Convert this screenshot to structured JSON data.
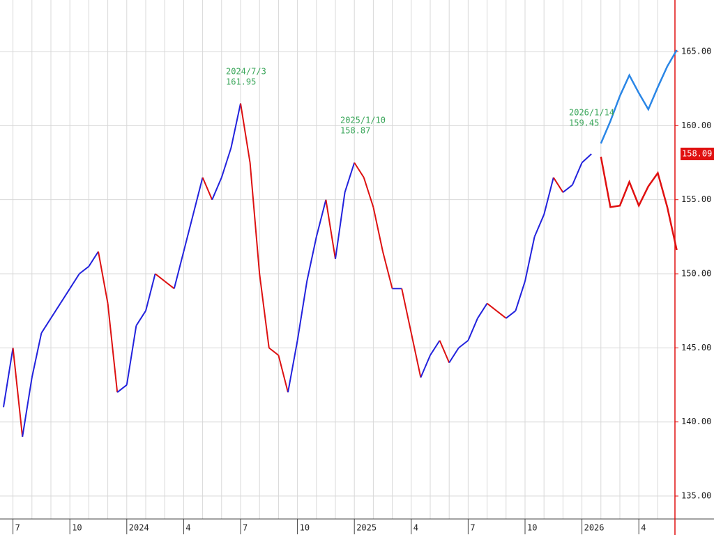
{
  "chart_data": {
    "type": "line",
    "categories": [
      null,
      "7",
      null,
      null,
      null,
      null,
      null,
      "10",
      null,
      null,
      null,
      null,
      null,
      "2024",
      null,
      null,
      null,
      null,
      null,
      "4",
      null,
      null,
      null,
      null,
      null,
      "7",
      null,
      null,
      null,
      null,
      null,
      "10",
      null,
      null,
      null,
      null,
      null,
      "2025",
      null,
      null,
      null,
      null,
      null,
      "4",
      null,
      null,
      null,
      null,
      null,
      "7",
      null,
      null,
      null,
      null,
      null,
      "10",
      null,
      null,
      null,
      null,
      null,
      "2026",
      null,
      null,
      null,
      null,
      null,
      "4",
      null,
      null,
      null,
      null
    ],
    "series": [
      {
        "color": "#2222dd",
        "down_color": "#dd1111",
        "values": [
          141,
          145,
          139,
          143,
          146,
          147,
          148,
          149,
          150,
          150.5,
          151.5,
          148,
          142,
          142.5,
          146.5,
          147.5,
          150,
          149.5,
          149,
          151.5,
          154,
          156.5,
          155,
          156.5,
          158.5,
          161.5,
          157.5,
          150,
          145,
          144.5,
          142,
          145.5,
          149.5,
          152.5,
          155,
          151,
          155.5,
          157.5,
          156.5,
          154.5,
          151.5,
          149,
          149,
          146,
          143,
          144.5,
          145.5,
          144,
          145,
          145.5,
          147,
          148,
          147.5,
          147,
          147.5,
          149.5,
          152.5,
          154,
          156.5,
          155.5,
          156,
          157.5,
          158.09,
          null,
          null,
          null,
          null,
          null,
          null,
          null,
          null,
          null
        ]
      },
      {
        "color": "#2a86e6",
        "values": [
          null,
          null,
          null,
          null,
          null,
          null,
          null,
          null,
          null,
          null,
          null,
          null,
          null,
          null,
          null,
          null,
          null,
          null,
          null,
          null,
          null,
          null,
          null,
          null,
          null,
          null,
          null,
          null,
          null,
          null,
          null,
          null,
          null,
          null,
          null,
          null,
          null,
          null,
          null,
          null,
          null,
          null,
          null,
          null,
          null,
          null,
          null,
          null,
          null,
          null,
          null,
          null,
          null,
          null,
          null,
          null,
          null,
          null,
          null,
          null,
          null,
          null,
          null,
          158.8,
          160.3,
          162,
          163.4,
          162.2,
          161.1,
          162.6,
          164,
          165.1
        ]
      },
      {
        "color": "#e01010",
        "values": [
          null,
          null,
          null,
          null,
          null,
          null,
          null,
          null,
          null,
          null,
          null,
          null,
          null,
          null,
          null,
          null,
          null,
          null,
          null,
          null,
          null,
          null,
          null,
          null,
          null,
          null,
          null,
          null,
          null,
          null,
          null,
          null,
          null,
          null,
          null,
          null,
          null,
          null,
          null,
          null,
          null,
          null,
          null,
          null,
          null,
          null,
          null,
          null,
          null,
          null,
          null,
          null,
          null,
          null,
          null,
          null,
          null,
          null,
          null,
          null,
          null,
          null,
          null,
          157.9,
          154.5,
          154.6,
          156.2,
          154.6,
          155.9,
          156.8,
          154.5,
          151.6
        ]
      }
    ],
    "ylim": [
      133.45,
      168.48
    ],
    "yticks": [
      {
        "value": 135,
        "label": "135.00"
      },
      {
        "value": 140,
        "label": "140.00"
      },
      {
        "value": 145,
        "label": "145.00"
      },
      {
        "value": 150,
        "label": "150.00"
      },
      {
        "value": 155,
        "label": "155.00"
      },
      {
        "value": 160,
        "label": "160.00"
      },
      {
        "value": 165,
        "label": "165.00"
      }
    ],
    "grid": true,
    "annotations": [
      {
        "date": "2024/7/3",
        "value": 161.95
      },
      {
        "date": "2025/1/10",
        "value": 158.87
      },
      {
        "date": "2026/1/14",
        "value": 159.45
      }
    ],
    "annotation_color": "#3aa65a",
    "axis_color": "#e01010"
  }
}
